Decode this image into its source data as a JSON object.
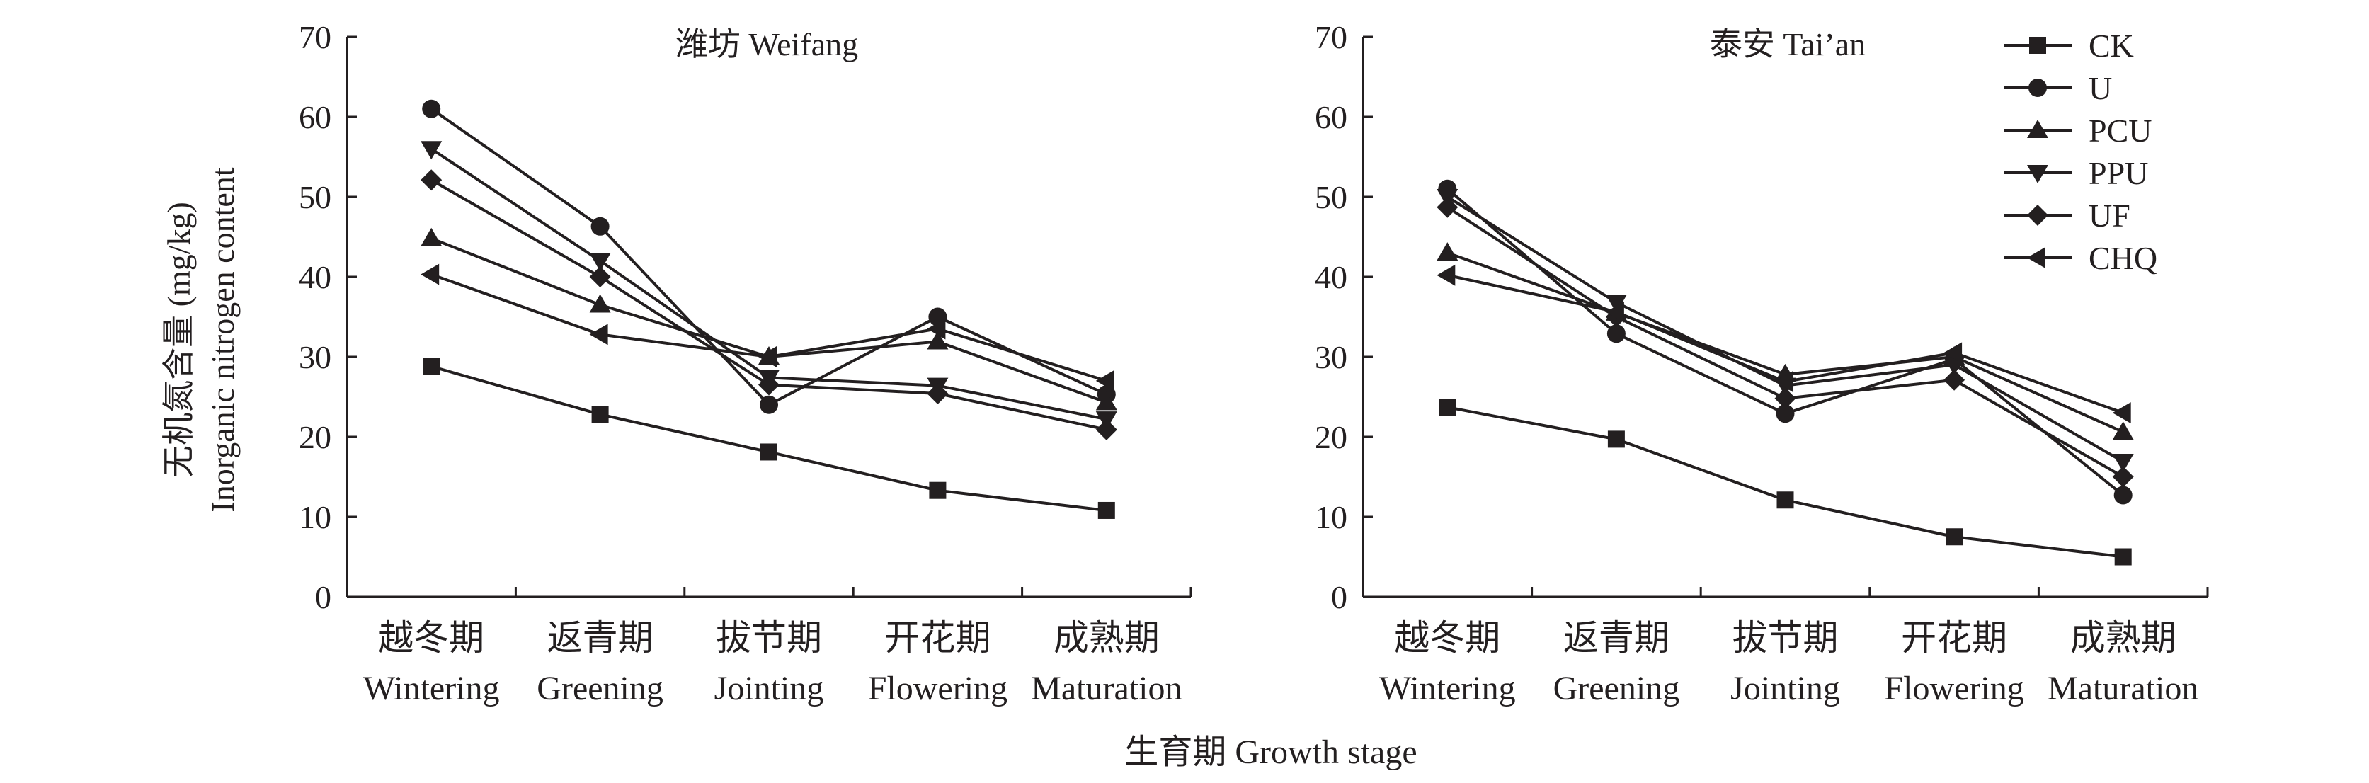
{
  "figure": {
    "ylabel_cn": "无机氮含量 (mg/kg)",
    "ylabel_en": "Inorganic nitrogen content",
    "xlabel": "生育期 Growth stage"
  },
  "chart_data": [
    {
      "type": "line",
      "title": "潍坊 Weifang",
      "categories_cn": [
        "越冬期",
        "返青期",
        "拔节期",
        "开花期",
        "成熟期"
      ],
      "categories_en": [
        "Wintering",
        "Greening",
        "Jointing",
        "Flowering",
        "Maturation"
      ],
      "ylim": [
        0,
        70
      ],
      "yticks": [
        0,
        10,
        20,
        30,
        40,
        50,
        60,
        70
      ],
      "grid": false,
      "series": [
        {
          "name": "CK",
          "marker": "square",
          "values": [
            28.8,
            22.8,
            18.1,
            13.3,
            10.8
          ]
        },
        {
          "name": "U",
          "marker": "circle",
          "values": [
            61.0,
            46.3,
            24.0,
            35.0,
            25.3
          ]
        },
        {
          "name": "PCU",
          "marker": "triangle-up",
          "values": [
            44.8,
            36.5,
            30.0,
            31.9,
            24.3
          ]
        },
        {
          "name": "PPU",
          "marker": "triangle-down",
          "values": [
            56.0,
            42.0,
            27.4,
            26.4,
            22.2
          ]
        },
        {
          "name": "UF",
          "marker": "diamond",
          "values": [
            52.1,
            40.0,
            26.5,
            25.4,
            20.9
          ]
        },
        {
          "name": "CHQ",
          "marker": "triangle-left",
          "values": [
            40.3,
            32.8,
            30.0,
            33.5,
            27.0
          ]
        }
      ]
    },
    {
      "type": "line",
      "title": "泰安 Tai’an",
      "categories_cn": [
        "越冬期",
        "返青期",
        "拔节期",
        "开花期",
        "成熟期"
      ],
      "categories_en": [
        "Wintering",
        "Greening",
        "Jointing",
        "Flowering",
        "Maturation"
      ],
      "ylim": [
        0,
        70
      ],
      "yticks": [
        0,
        10,
        20,
        30,
        40,
        50,
        60,
        70
      ],
      "grid": false,
      "legend_position": "top-right",
      "series": [
        {
          "name": "CK",
          "marker": "square",
          "values": [
            23.7,
            19.7,
            12.1,
            7.5,
            5.0
          ]
        },
        {
          "name": "U",
          "marker": "circle",
          "values": [
            51.0,
            32.9,
            22.9,
            29.7,
            12.7
          ]
        },
        {
          "name": "PCU",
          "marker": "triangle-up",
          "values": [
            43.0,
            35.5,
            27.8,
            30.0,
            20.6
          ]
        },
        {
          "name": "PPU",
          "marker": "triangle-down",
          "values": [
            50.0,
            36.8,
            26.4,
            29.0,
            16.9
          ]
        },
        {
          "name": "UF",
          "marker": "diamond",
          "values": [
            48.7,
            35.0,
            24.8,
            27.1,
            15.0
          ]
        },
        {
          "name": "CHQ",
          "marker": "triangle-left",
          "values": [
            40.2,
            35.6,
            26.9,
            30.5,
            23.0
          ]
        }
      ]
    }
  ]
}
